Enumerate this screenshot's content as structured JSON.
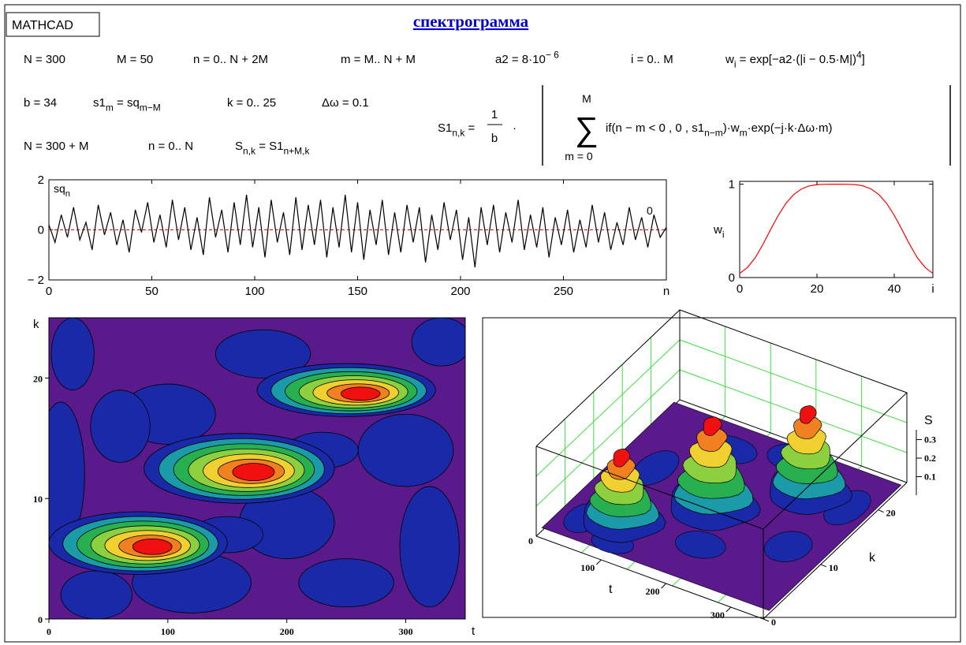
{
  "header": {
    "label": "MATHCAD",
    "title": "спектрограмма"
  },
  "formulas": [
    [
      "N = 300"
    ],
    [
      "M = 50"
    ],
    [
      "n = 0.. N + 2M"
    ],
    [
      "m = M.. N + M"
    ],
    [
      "a2 = 8·10",
      {
        "sup": "− 6"
      }
    ],
    [
      "i = 0.. M"
    ],
    [
      "w",
      {
        "sub": "i"
      },
      " = exp[−a2·(|i − 0.5·M|)",
      {
        "sup": "4"
      },
      "]"
    ],
    [
      "b = 34"
    ],
    [
      "s1",
      {
        "sub": "m"
      },
      " = sq",
      {
        "sub": "m−M"
      }
    ],
    [
      "k = 0.. 25"
    ],
    [
      "Δω = 0.1"
    ],
    [
      "N = 300 + M"
    ],
    [
      "n = 0.. N"
    ],
    [
      "S",
      {
        "sub": "n,k"
      },
      " = S1",
      {
        "sub": "n+M,k"
      }
    ]
  ],
  "sum_formula": {
    "lhs": [
      "S1",
      {
        "sub": "n,k"
      },
      " = "
    ],
    "numerator": "1",
    "denominator": "b",
    "dot": "·",
    "upper": "M",
    "sigma": "∑",
    "lower": "m = 0",
    "body": [
      "if(n − m < 0 , 0 , s1",
      {
        "sub": "n−m"
      },
      ")·w",
      {
        "sub": "m"
      },
      "·exp(−j·k·Δω·m)"
    ]
  },
  "chart_data": [
    {
      "type": "line",
      "color": "#000000",
      "x_label": "n",
      "y_label": [
        "sq",
        {
          "sub": "n"
        }
      ],
      "annotation": "0",
      "reference_line": {
        "value": 0,
        "color": "#e00000"
      },
      "xlim": [
        0,
        300
      ],
      "ylim": [
        -2,
        2
      ],
      "xticks": [
        0,
        50,
        100,
        150,
        200,
        250
      ],
      "yticks": [
        {
          "value": -2,
          "label": "− 2"
        },
        0,
        2
      ],
      "x": [
        0,
        3,
        6,
        9,
        12,
        15,
        18,
        21,
        24,
        27,
        30,
        33,
        36,
        39,
        42,
        45,
        48,
        51,
        54,
        57,
        60,
        63,
        66,
        69,
        72,
        75,
        78,
        81,
        84,
        87,
        90,
        93,
        96,
        99,
        102,
        105,
        108,
        111,
        114,
        117,
        120,
        123,
        126,
        129,
        132,
        135,
        138,
        141,
        144,
        147,
        150,
        153,
        156,
        159,
        162,
        165,
        168,
        171,
        174,
        177,
        180,
        183,
        186,
        189,
        192,
        195,
        198,
        201,
        204,
        207,
        210,
        213,
        216,
        219,
        222,
        225,
        228,
        231,
        234,
        237,
        240,
        243,
        246,
        249,
        252,
        255,
        258,
        261,
        264,
        267,
        270,
        273,
        276,
        279,
        282,
        285,
        288,
        291,
        294,
        297,
        300
      ],
      "values": [
        0.2,
        -0.5,
        0.6,
        -0.3,
        0.9,
        -0.4,
        0.3,
        -0.8,
        1.0,
        -0.2,
        0.7,
        -0.6,
        0.4,
        -0.9,
        0.8,
        -0.1,
        1.1,
        -0.5,
        0.6,
        -0.7,
        1.2,
        -0.4,
        0.9,
        -0.8,
        0.5,
        -1.0,
        1.3,
        -0.3,
        0.8,
        -0.9,
        1.1,
        -0.6,
        1.4,
        -0.7,
        0.9,
        -1.1,
        1.2,
        -0.5,
        0.7,
        -1.0,
        1.3,
        -0.8,
        1.0,
        -0.6,
        1.2,
        -1.1,
        0.9,
        -0.7,
        1.4,
        -0.9,
        1.1,
        -1.2,
        0.8,
        -0.6,
        1.2,
        -1.0,
        0.7,
        -0.9,
        1.0,
        -0.5,
        0.9,
        -1.3,
        0.6,
        -0.8,
        1.1,
        -0.4,
        0.8,
        -1.2,
        0.5,
        -1.5,
        0.9,
        -0.6,
        1.0,
        -0.9,
        0.7,
        -0.5,
        1.2,
        -0.8,
        0.6,
        -0.7,
        0.9,
        -1.1,
        0.5,
        -0.6,
        0.8,
        -0.9,
        0.4,
        -0.7,
        1.0,
        -0.5,
        0.7,
        -0.8,
        0.3,
        -0.6,
        0.9,
        -0.4,
        0.5,
        -0.7,
        0.6,
        -0.3,
        0.1
      ]
    },
    {
      "type": "line",
      "color": "#ff0000",
      "x_label": "i",
      "y_label": [
        "w",
        {
          "sub": "i"
        }
      ],
      "xlim": [
        0,
        50
      ],
      "ylim": [
        0,
        1.03
      ],
      "xticks": [
        0,
        20,
        40
      ],
      "yticks": [
        0,
        1
      ],
      "x": [
        0,
        2,
        4,
        6,
        8,
        10,
        12,
        14,
        16,
        18,
        20,
        22,
        24,
        26,
        28,
        30,
        32,
        34,
        36,
        38,
        40,
        42,
        44,
        46,
        48,
        50
      ],
      "values": [
        0.044,
        0.107,
        0.211,
        0.353,
        0.513,
        0.667,
        0.796,
        0.889,
        0.949,
        0.981,
        0.995,
        0.999,
        1.0,
        1.0,
        0.999,
        0.995,
        0.981,
        0.949,
        0.889,
        0.796,
        0.667,
        0.513,
        0.353,
        0.211,
        0.107,
        0.044
      ]
    },
    {
      "type": "contour",
      "x_label": "t",
      "y_label": "k",
      "xlim": [
        0,
        350
      ],
      "ylim": [
        0,
        25
      ],
      "xticks": [
        0,
        100,
        200,
        300
      ],
      "yticks": [
        0,
        10,
        20
      ]
    },
    {
      "type": "surface",
      "x_label": "t",
      "y_label": "k",
      "z_label": "S",
      "xticks": [
        100,
        200,
        300
      ],
      "yticks": [
        0,
        10,
        20
      ],
      "zticks": [
        0,
        0.1,
        0.2,
        0.3
      ]
    }
  ]
}
